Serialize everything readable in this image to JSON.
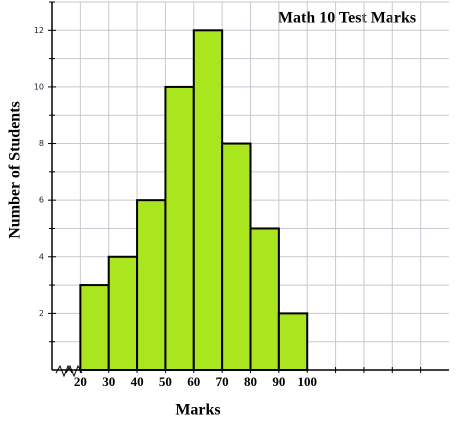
{
  "chart_data": {
    "type": "histogram",
    "title": "Math 10 Test Marks",
    "x_label": "Marks",
    "y_label": "Number of Students",
    "bins": [
      20,
      30,
      40,
      50,
      60,
      70,
      80,
      90,
      100
    ],
    "counts": [
      3,
      4,
      6,
      10,
      12,
      8,
      5,
      2
    ],
    "color": "#aae61d",
    "xlim": [
      10,
      150
    ],
    "xticks": [
      20,
      30,
      40,
      50,
      60,
      70,
      80,
      90,
      100
    ],
    "minor_xticks": [
      110,
      120,
      130,
      140
    ],
    "ylim": [
      0,
      13
    ],
    "yticks": [
      2,
      4,
      6,
      8,
      10,
      12
    ],
    "minor_yticks": [
      1,
      3,
      5,
      7,
      9,
      11,
      13
    ],
    "grid": true,
    "x_axis_break": true
  }
}
